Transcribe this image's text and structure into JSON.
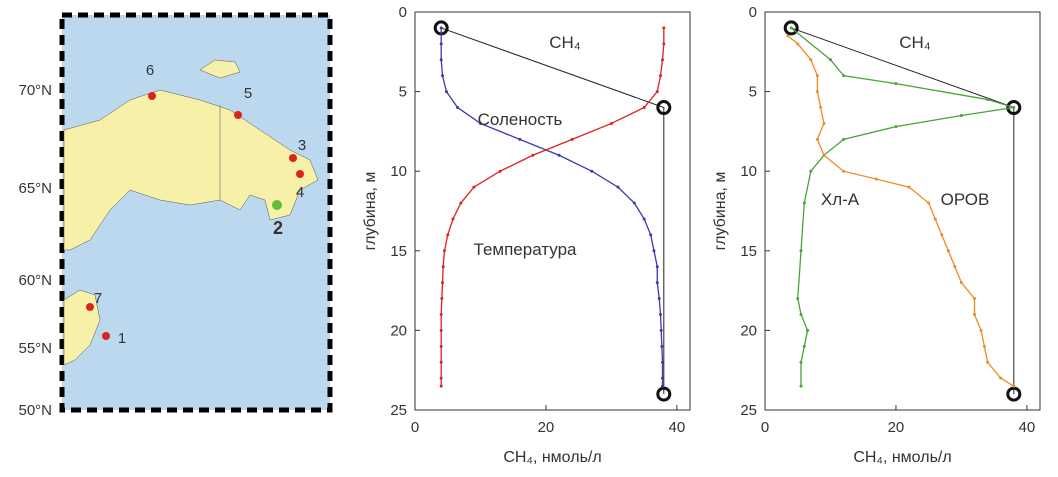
{
  "map": {
    "lat_labels": [
      "70°N",
      "65°N",
      "60°N",
      "55°N",
      "50°N"
    ],
    "stations": [
      "6",
      "5",
      "3",
      "4",
      "2",
      "7",
      "1"
    ]
  },
  "chart_data": [
    {
      "type": "profile",
      "xlabel": "CH₄, нмоль/л",
      "ylabel": "глубина, м",
      "xlim": [
        0,
        42
      ],
      "ylim": [
        0,
        25
      ],
      "xticks": [
        0,
        20,
        40
      ],
      "yticks": [
        0,
        5,
        10,
        15,
        20,
        25
      ],
      "y_reversed": true,
      "series": [
        {
          "name": "CH₄",
          "color": "#222222",
          "x": [
            4,
            38,
            38
          ],
          "y": [
            1,
            6,
            24
          ]
        },
        {
          "name": "Соленость",
          "color": "#3a3ab0",
          "x": [
            4,
            4,
            4,
            4.2,
            4.8,
            6.5,
            10,
            16,
            22,
            27,
            31,
            33.5,
            35,
            36,
            36.5,
            37,
            37,
            37.3,
            37.5,
            37.6,
            37.7,
            37.8,
            37.8,
            37.8
          ],
          "y": [
            1,
            2,
            3,
            4,
            5,
            6,
            7,
            8,
            9,
            10,
            11,
            12,
            13,
            14,
            15,
            16,
            17,
            18,
            19,
            20,
            21,
            22,
            23,
            23.5
          ]
        },
        {
          "name": "Температура",
          "color": "#e02020",
          "x": [
            38,
            38,
            37.8,
            37.5,
            37,
            35,
            30,
            24,
            18,
            13,
            9,
            7,
            5.8,
            5,
            4.5,
            4.3,
            4.2,
            4.1,
            4,
            4,
            4,
            4,
            4,
            4
          ],
          "y": [
            1,
            2,
            3,
            4,
            5,
            6,
            7,
            8,
            9,
            10,
            11,
            12,
            13,
            14,
            15,
            16,
            17,
            18,
            19,
            20,
            21,
            22,
            23,
            23.5
          ]
        }
      ]
    },
    {
      "type": "profile",
      "xlabel": "CH₄, нмоль/л",
      "ylabel": "глубина, м",
      "xlim": [
        0,
        42
      ],
      "ylim": [
        0,
        25
      ],
      "xticks": [
        0,
        20,
        40
      ],
      "yticks": [
        0,
        5,
        10,
        15,
        20,
        25
      ],
      "y_reversed": true,
      "series": [
        {
          "name": "CH₄",
          "color": "#222222",
          "x": [
            4,
            38,
            38
          ],
          "y": [
            1,
            6,
            24
          ]
        },
        {
          "name": "Хл-А",
          "color": "#4aa33a",
          "x": [
            4,
            10,
            12,
            20,
            34,
            38,
            30,
            20,
            12,
            9,
            7,
            6,
            5.5,
            5,
            5.5,
            6.5,
            6,
            5.5,
            5.5
          ],
          "y": [
            1,
            3,
            4,
            4.5,
            5.5,
            6,
            6.5,
            7.2,
            8,
            9,
            10,
            12,
            15,
            18,
            19,
            20,
            21,
            22,
            23.5
          ]
        },
        {
          "name": "ОРОВ",
          "color": "#f08a24",
          "x": [
            3.5,
            5,
            7,
            8,
            8,
            8.5,
            9,
            8,
            9,
            12,
            17,
            22,
            25,
            26,
            27,
            28,
            29,
            30,
            32,
            32,
            33,
            33.5,
            34,
            36,
            38
          ],
          "y": [
            1.5,
            2,
            3,
            4,
            5,
            6,
            7,
            8,
            9,
            10,
            10.5,
            11,
            12,
            13,
            14,
            15,
            16,
            17,
            18,
            19,
            20,
            21,
            22,
            23,
            23.5
          ]
        }
      ]
    }
  ]
}
